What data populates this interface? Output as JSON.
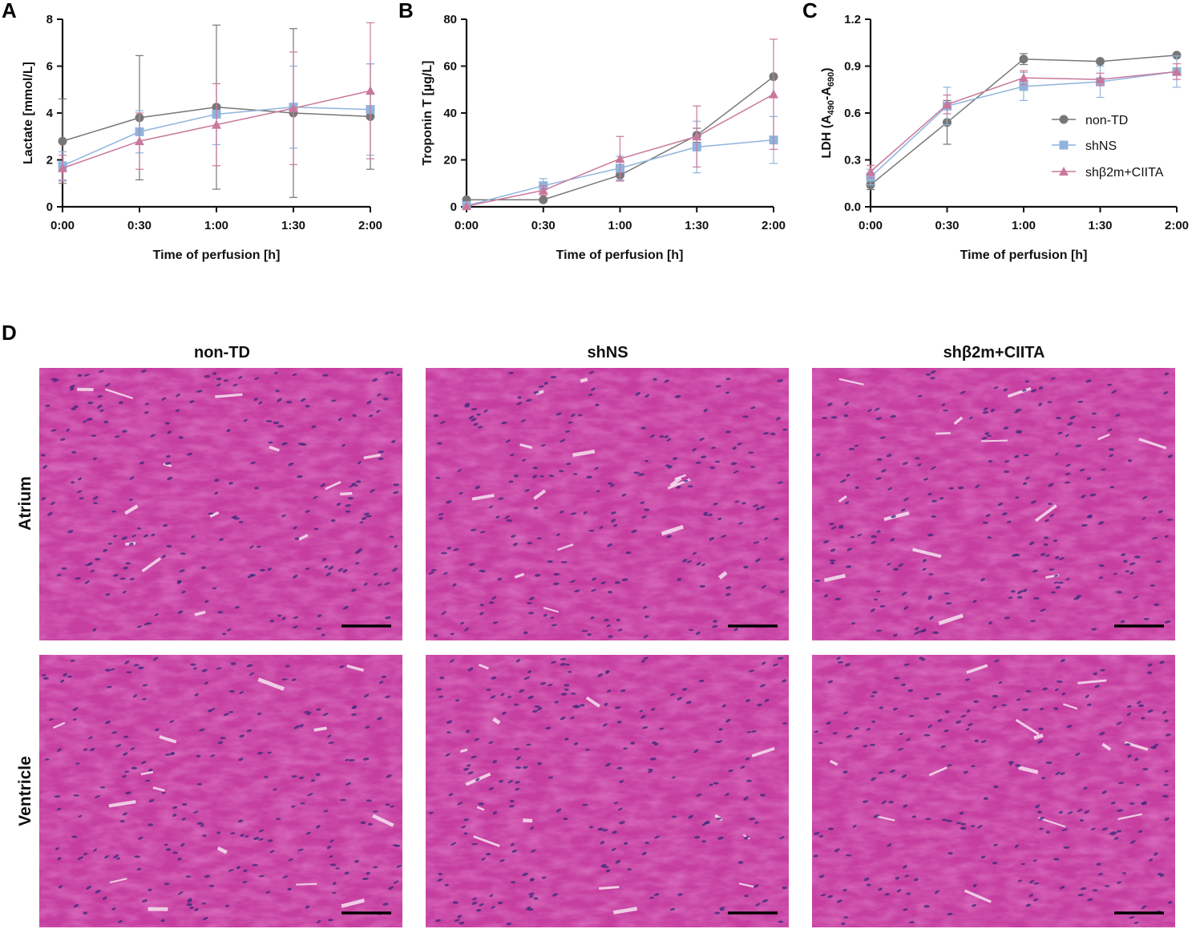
{
  "panels": {
    "A": "A",
    "B": "B",
    "C": "C",
    "D": "D"
  },
  "colors": {
    "non_TD": "#777777",
    "shNS": "#8fb4dc",
    "shB2m_CIITA": "#c9789c",
    "tissue_base": "#c63fa0",
    "tissue_light": "#d96ab9",
    "nuclei": "#3a2a7a"
  },
  "chart_data": [
    {
      "id": "lactate",
      "type": "line",
      "categories": [
        "0:00",
        "0:30",
        "1:00",
        "1:30",
        "2:00"
      ],
      "xlabel": "Time of perfusion [h]",
      "ylabel": "Lactate [mmol/L]",
      "ylim": [
        0,
        8
      ],
      "yticks": [
        "0",
        "2",
        "4",
        "6",
        "8"
      ],
      "legend": "none",
      "grid": false,
      "series": [
        {
          "name": "non-TD",
          "color": "#777777",
          "marker": "circle",
          "values": [
            2.8,
            3.8,
            4.25,
            4.0,
            3.85
          ],
          "err": [
            1.8,
            2.65,
            3.5,
            3.6,
            2.25
          ]
        },
        {
          "name": "shNS",
          "color": "#8fb4dc",
          "marker": "square",
          "values": [
            1.75,
            3.2,
            3.95,
            4.25,
            4.15
          ],
          "err": [
            0.6,
            0.9,
            1.3,
            1.75,
            1.95
          ]
        },
        {
          "name": "shβ2m+CIITA",
          "color": "#c9789c",
          "marker": "triangle",
          "values": [
            1.65,
            2.8,
            3.5,
            4.2,
            4.95
          ],
          "err": [
            0.55,
            1.2,
            1.75,
            2.4,
            2.9
          ]
        }
      ]
    },
    {
      "id": "troponin",
      "type": "line",
      "categories": [
        "0:00",
        "0:30",
        "1:00",
        "1:30",
        "2:00"
      ],
      "xlabel": "Time of perfusion [h]",
      "ylabel": "Troponin T [µg/L]",
      "ylim": [
        0,
        80
      ],
      "yticks": [
        "0",
        "20",
        "40",
        "60",
        "80"
      ],
      "legend": "none",
      "grid": false,
      "series": [
        {
          "name": "non-TD",
          "color": "#777777",
          "marker": "circle",
          "values": [
            3.0,
            3.0,
            13.5,
            30.5,
            55.5
          ],
          "err": [
            0,
            0,
            2.5,
            3,
            0
          ]
        },
        {
          "name": "shNS",
          "color": "#8fb4dc",
          "marker": "square",
          "values": [
            0.5,
            9.0,
            16.5,
            25.5,
            28.5
          ],
          "err": [
            0,
            3.0,
            5.0,
            11.0,
            10.0
          ]
        },
        {
          "name": "shβ2m+CIITA",
          "color": "#c9789c",
          "marker": "triangle",
          "values": [
            0.3,
            7.0,
            20.5,
            30.0,
            48.0
          ],
          "err": [
            0,
            2.0,
            9.5,
            13.0,
            23.5
          ]
        }
      ]
    },
    {
      "id": "ldh",
      "type": "line",
      "categories": [
        "0:00",
        "0:30",
        "1:00",
        "1:30",
        "2:00"
      ],
      "xlabel": "Time of perfusion [h]",
      "ylabel_main": "LDH (A",
      "ylabel_sub1": "490",
      "ylabel_mid": "-A",
      "ylabel_sub2": "690",
      "ylabel_end": ")",
      "ylim": [
        0,
        1.2
      ],
      "yticks": [
        "0.0",
        "0.3",
        "0.6",
        "0.9",
        "1.2"
      ],
      "legend": "right",
      "grid": false,
      "series": [
        {
          "name": "non-TD",
          "color": "#777777",
          "marker": "circle",
          "values": [
            0.14,
            0.54,
            0.945,
            0.93,
            0.97
          ],
          "err": [
            0.03,
            0.14,
            0.035,
            0.0,
            0.0
          ]
        },
        {
          "name": "shNS",
          "color": "#8fb4dc",
          "marker": "square",
          "values": [
            0.19,
            0.645,
            0.77,
            0.8,
            0.865
          ],
          "err": [
            0.05,
            0.12,
            0.09,
            0.1,
            0.1
          ]
        },
        {
          "name": "shβ2m+CIITA",
          "color": "#c9789c",
          "marker": "triangle",
          "values": [
            0.225,
            0.655,
            0.825,
            0.815,
            0.865
          ],
          "err": [
            0.04,
            0.06,
            0.045,
            0.04,
            0.05
          ]
        }
      ]
    }
  ],
  "histology": {
    "columns": [
      "non-TD",
      "shNS",
      "shβ2m+CIITA"
    ],
    "rows": [
      "Atrium",
      "Ventricle"
    ]
  }
}
